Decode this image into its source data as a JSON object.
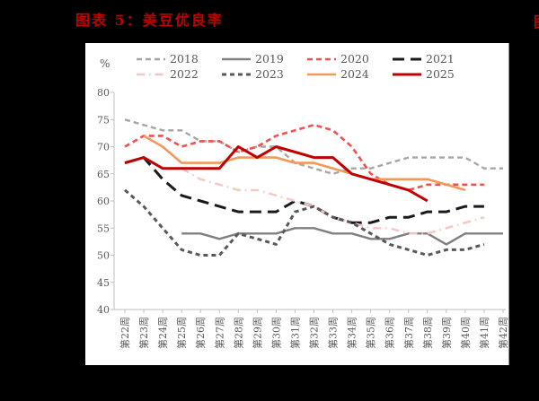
{
  "page": {
    "background": "#000000",
    "panel_background": "#ffffff"
  },
  "header": {
    "title": "图表 5：美豆优良率",
    "title_color": "#c00000",
    "adjacent_title_fragment": "图"
  },
  "axis_style": {
    "line_color": "#bfbfbf",
    "label_color": "#595959"
  },
  "chart_data": {
    "type": "line",
    "title": "美豆优良率",
    "unit_label": "%",
    "ylabel": "%",
    "ylim": [
      40,
      80
    ],
    "y_ticks": [
      80,
      75,
      70,
      65,
      60,
      55,
      50,
      45,
      40
    ],
    "grid": false,
    "legend_position": "top",
    "x_start_week": 22,
    "x_categories": [
      "第22周",
      "第23周",
      "第24周",
      "第25周",
      "第26周",
      "第27周",
      "第28周",
      "第29周",
      "第30周",
      "第31周",
      "第32周",
      "第33周",
      "第34周",
      "第35周",
      "第36周",
      "第37周",
      "第38周",
      "第39周",
      "第40周",
      "第41周",
      "第42周"
    ],
    "series": [
      {
        "name": "2018",
        "color": "#a6a6a6",
        "style": "dashed",
        "width": 2.4,
        "start_week": 22,
        "values": [
          75,
          74,
          73,
          73,
          71,
          71,
          69,
          70,
          70,
          67,
          66,
          65,
          66,
          66,
          67,
          68,
          68,
          68,
          68,
          66,
          66
        ]
      },
      {
        "name": "2019",
        "color": "#808080",
        "style": "solid",
        "width": 2.4,
        "start_week": 25,
        "values": [
          54,
          54,
          53,
          54,
          54,
          54,
          55,
          55,
          54,
          54,
          53,
          53,
          54,
          54,
          52,
          54,
          54,
          54
        ]
      },
      {
        "name": "2020",
        "color": "#f25050",
        "style": "dashed",
        "width": 2.6,
        "start_week": 22,
        "values": [
          70,
          72,
          72,
          70,
          71,
          71,
          69,
          70,
          72,
          73,
          74,
          73,
          70,
          65,
          63,
          62,
          63,
          63,
          63,
          63
        ]
      },
      {
        "name": "2021",
        "color": "#1a1a1a",
        "style": "long-dash",
        "width": 3,
        "start_week": 22,
        "values": [
          67,
          68,
          64,
          61,
          60,
          59,
          58,
          58,
          58,
          60,
          59,
          57,
          56,
          56,
          57,
          57,
          58,
          58,
          59,
          59
        ]
      },
      {
        "name": "2022",
        "color": "#f7c6c2",
        "style": "dash-dot",
        "width": 2.4,
        "start_week": 25,
        "values": [
          66,
          64,
          63,
          62,
          62,
          61,
          60,
          59,
          57,
          56,
          55,
          55,
          54,
          54,
          55,
          56,
          57
        ]
      },
      {
        "name": "2023",
        "color": "#595959",
        "style": "fine-dash",
        "width": 3,
        "start_week": 22,
        "values": [
          62,
          59,
          55,
          51,
          50,
          50,
          54,
          53,
          52,
          58,
          59,
          57,
          56,
          54,
          52,
          51,
          50,
          51,
          51,
          52
        ]
      },
      {
        "name": "2024",
        "color": "#f2995a",
        "style": "solid",
        "width": 2.6,
        "start_week": 23,
        "values": [
          72,
          70,
          67,
          67,
          67,
          68,
          68,
          68,
          67,
          67,
          66,
          65,
          64,
          64,
          64,
          64,
          63,
          62
        ]
      },
      {
        "name": "2025",
        "color": "#c00000",
        "style": "solid",
        "width": 3,
        "start_week": 22,
        "values": [
          67,
          68,
          66,
          66,
          66,
          66,
          70,
          68,
          70,
          69,
          68,
          68,
          65,
          64,
          63,
          62,
          60
        ]
      }
    ],
    "legend_rows": [
      [
        "2018",
        "2019",
        "2020",
        "2021"
      ],
      [
        "2022",
        "2023",
        "2024",
        "2025"
      ]
    ]
  }
}
